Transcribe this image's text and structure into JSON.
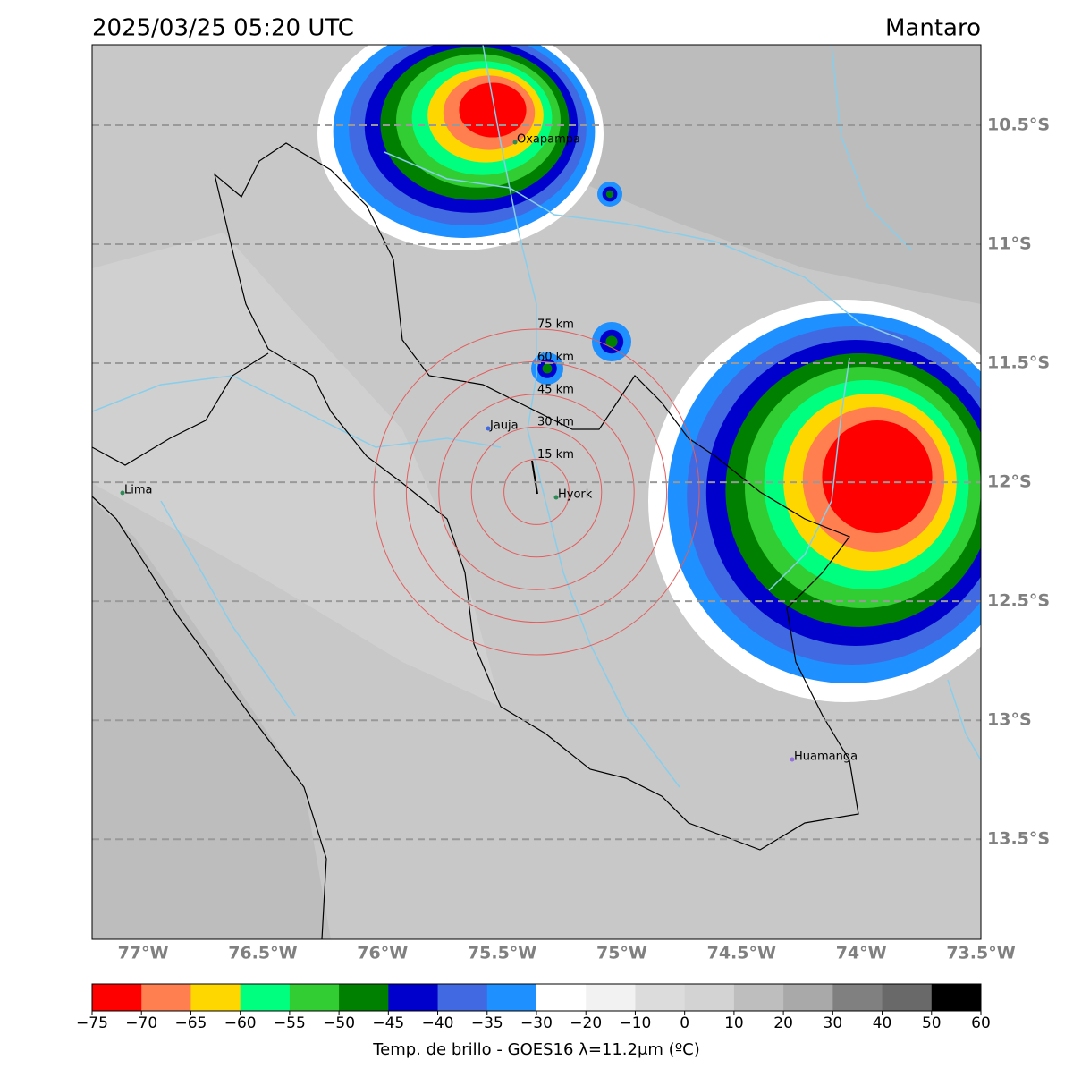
{
  "title": "2025/03/25 05:20 UTC",
  "region": "Mantaro",
  "map": {
    "lonlim": [
      -77.213,
      -73.5
    ],
    "latlim": [
      10.162,
      13.92
    ],
    "lon_ticks": [
      {
        "value": -77,
        "label": "77°W"
      },
      {
        "value": -76.5,
        "label": "76.5°W"
      },
      {
        "value": -76,
        "label": "76°W"
      },
      {
        "value": -75.5,
        "label": "75.5°W"
      },
      {
        "value": -75,
        "label": "75°W"
      },
      {
        "value": -74.5,
        "label": "74.5°W"
      },
      {
        "value": -74,
        "label": "74°W"
      },
      {
        "value": -73.5,
        "label": "73.5°W"
      }
    ],
    "lat_ticks": [
      {
        "value": 10.5,
        "label": "10.5°S"
      },
      {
        "value": 11,
        "label": "11°S"
      },
      {
        "value": 11.5,
        "label": "11.5°S"
      },
      {
        "value": 12,
        "label": "12°S"
      },
      {
        "value": 12.5,
        "label": "12.5°S"
      },
      {
        "value": 13,
        "label": "13°S"
      },
      {
        "value": 13.5,
        "label": "13.5°S"
      }
    ],
    "rings": [
      "15 km",
      "30 km",
      "45 km",
      "60 km",
      "75 km"
    ],
    "cities": [
      "Oxapampa",
      "Jauja",
      "Hyork",
      "Lima",
      "Huamanga"
    ]
  },
  "colorbar": {
    "label": "Temp. de brillo - GOES16 λ=11.2μm (ºC)",
    "ticks": [
      {
        "value": -75,
        "label": "−75"
      },
      {
        "value": -70,
        "label": "−70"
      },
      {
        "value": -65,
        "label": "−65"
      },
      {
        "value": -60,
        "label": "−60"
      },
      {
        "value": -55,
        "label": "−55"
      },
      {
        "value": -50,
        "label": "−50"
      },
      {
        "value": -45,
        "label": "−45"
      },
      {
        "value": -40,
        "label": "−40"
      },
      {
        "value": -35,
        "label": "−35"
      },
      {
        "value": -30,
        "label": "−30"
      },
      {
        "value": -20,
        "label": "−20"
      },
      {
        "value": -10,
        "label": "−10"
      },
      0,
      10,
      20,
      30,
      40,
      50,
      60
    ],
    "colors": [
      "#ff0000",
      "#ff7f50",
      "#ffd700",
      "#00ff7f",
      "#32cd32",
      "#008000",
      "#0000cd",
      "#4169e1",
      "#1e90ff",
      "#ffffff",
      "#f2f2f2",
      "#dcdcdc",
      "#d3d3d3",
      "#bebebe",
      "#a9a9a9",
      "#808080",
      "#696969",
      "#000000"
    ]
  }
}
